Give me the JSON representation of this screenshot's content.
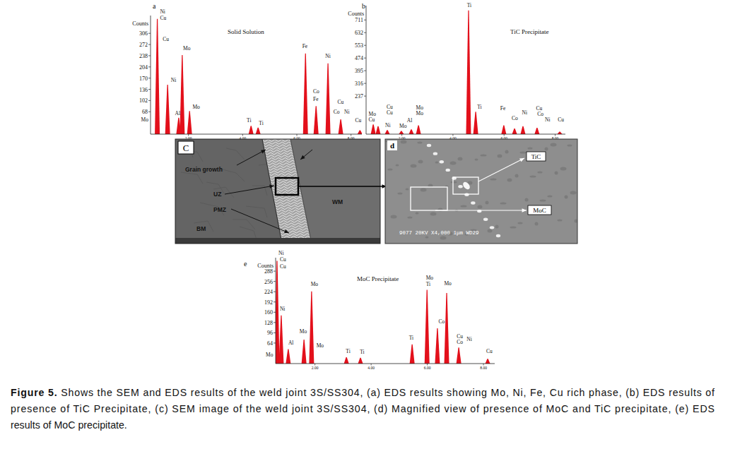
{
  "spectrum_labels": [
    "a",
    "b",
    "e"
  ],
  "chart_data": [
    {
      "type": "bar",
      "title": "Solid Solution",
      "ylabel": "Counts",
      "x": [
        0.85,
        1.23,
        1.64,
        1.77,
        2.04,
        4.31,
        4.57,
        6.32,
        6.71,
        7.15,
        7.62,
        8.33
      ],
      "values": [
        350,
        150,
        50,
        240,
        70,
        25,
        20,
        245,
        85,
        215,
        45,
        12
      ],
      "color": "#e3101b",
      "xlim": [
        0.6,
        8.4
      ],
      "xticks": [
        {
          "value": 2,
          "label": "2.00"
        },
        {
          "value": 4,
          "label": "4.00"
        },
        {
          "value": 6,
          "label": "6.00"
        },
        {
          "value": 8,
          "label": "8.00"
        }
      ],
      "ylim": [
        0,
        360
      ],
      "yticks": [
        68,
        102,
        136,
        170,
        204,
        238,
        272,
        306
      ],
      "annotations": [
        {
          "text": "Ni",
          "x": 0.95,
          "y": 366
        },
        {
          "text": "Cu",
          "x": 0.95,
          "y": 347
        },
        {
          "text": "Cu",
          "x": 1.05,
          "y": 282
        },
        {
          "text": "Ni",
          "x": 1.35,
          "y": 158
        },
        {
          "text": "Al",
          "x": 1.5,
          "y": 58
        },
        {
          "text": "Mo",
          "x": 1.8,
          "y": 255
        },
        {
          "text": "Mo",
          "x": 2.15,
          "y": 78
        },
        {
          "text": "Mo",
          "x": 0.25,
          "y": 38
        },
        {
          "text": "Ti",
          "x": 4.15,
          "y": 36
        },
        {
          "text": "Ti",
          "x": 4.6,
          "y": 28
        },
        {
          "text": "Fe",
          "x": 6.2,
          "y": 262
        },
        {
          "text": "Co",
          "x": 6.6,
          "y": 125
        },
        {
          "text": "Fe",
          "x": 6.6,
          "y": 100
        },
        {
          "text": "Ni",
          "x": 7.05,
          "y": 232
        },
        {
          "text": "Cu",
          "x": 7.5,
          "y": 92
        },
        {
          "text": "Co",
          "x": 7.35,
          "y": 62
        },
        {
          "text": "Ni",
          "x": 7.75,
          "y": 62
        },
        {
          "text": "Cu",
          "x": 8.15,
          "y": 36
        }
      ]
    },
    {
      "type": "bar",
      "title": "TiC Precipitate",
      "ylabel": "Counts",
      "x": [
        0.88,
        1.07,
        1.43,
        1.98,
        2.37,
        2.65,
        4.61,
        4.89,
        5.99,
        6.41,
        6.74,
        7.29,
        8.18
      ],
      "values": [
        60,
        50,
        25,
        20,
        30,
        55,
        770,
        140,
        55,
        35,
        50,
        40,
        15
      ],
      "color": "#e3101b",
      "xlim": [
        0.6,
        8.4
      ],
      "xticks": [
        {
          "value": 2,
          "label": "2.00"
        },
        {
          "value": 4,
          "label": "4.00"
        },
        {
          "value": 6,
          "label": "6.00"
        },
        {
          "value": 8,
          "label": "8.00"
        }
      ],
      "ylim": [
        0,
        800
      ],
      "yticks": [
        237,
        316,
        395,
        474,
        553,
        632,
        711
      ],
      "annotations": [
        {
          "text": "Ti",
          "x": 4.55,
          "y": 790
        },
        {
          "text": "Ti",
          "x": 4.95,
          "y": 160
        },
        {
          "text": "Fe",
          "x": 5.85,
          "y": 150
        },
        {
          "text": "Co",
          "x": 6.3,
          "y": 90
        },
        {
          "text": "Ni",
          "x": 6.7,
          "y": 125
        },
        {
          "text": "Cu",
          "x": 7.25,
          "y": 150
        },
        {
          "text": "Co",
          "x": 7.3,
          "y": 115
        },
        {
          "text": "Ni",
          "x": 7.6,
          "y": 80
        },
        {
          "text": "Cu",
          "x": 8.1,
          "y": 80
        },
        {
          "text": "Mo",
          "x": 0.7,
          "y": 115
        },
        {
          "text": "Cu",
          "x": 0.7,
          "y": 80
        },
        {
          "text": "Cu",
          "x": 1.4,
          "y": 160
        },
        {
          "text": "Cu",
          "x": 1.4,
          "y": 125
        },
        {
          "text": "Ni",
          "x": 1.35,
          "y": 45
        },
        {
          "text": "Mo",
          "x": 1.9,
          "y": 38
        },
        {
          "text": "Al",
          "x": 2.2,
          "y": 75
        },
        {
          "text": "Mo",
          "x": 2.55,
          "y": 155
        },
        {
          "text": "Mo",
          "x": 2.55,
          "y": 120
        }
      ]
    },
    {
      "type": "bar",
      "title": "MoC Precipitate",
      "ylabel": "Counts",
      "x": [
        0.65,
        0.8,
        1.05,
        1.61,
        1.88,
        3.12,
        3.62,
        5.46,
        5.99,
        6.36,
        6.69,
        7.12,
        8.15
      ],
      "values": [
        320,
        150,
        45,
        75,
        225,
        20,
        18,
        60,
        230,
        110,
        220,
        50,
        15
      ],
      "color": "#e3101b",
      "xlim": [
        0.6,
        8.4
      ],
      "xticks": [
        {
          "value": 2,
          "label": "2.00"
        },
        {
          "value": 4,
          "label": "4.00"
        },
        {
          "value": 6,
          "label": "6.00"
        },
        {
          "value": 8,
          "label": "8.00"
        }
      ],
      "ylim": [
        0,
        330
      ],
      "yticks": [
        64,
        96,
        128,
        160,
        192,
        224,
        256,
        288
      ],
      "annotations": [
        {
          "text": "Ni",
          "x": 0.7,
          "y": 338
        },
        {
          "text": "Cu",
          "x": 0.75,
          "y": 318
        },
        {
          "text": "Cu",
          "x": 0.75,
          "y": 298
        },
        {
          "text": "Ni",
          "x": 0.75,
          "y": 165
        },
        {
          "text": "Al",
          "x": 1.05,
          "y": 60
        },
        {
          "text": "Mo",
          "x": 1.45,
          "y": 95
        },
        {
          "text": "Mo",
          "x": 1.85,
          "y": 242
        },
        {
          "text": "Mo",
          "x": 2.05,
          "y": 50
        },
        {
          "text": "Mo",
          "x": 0.25,
          "y": 22
        },
        {
          "text": "Ti",
          "x": 3.1,
          "y": 32
        },
        {
          "text": "Ti",
          "x": 3.6,
          "y": 30
        },
        {
          "text": "Ti",
          "x": 5.35,
          "y": 75
        },
        {
          "text": "Mo",
          "x": 5.95,
          "y": 262
        },
        {
          "text": "Ti",
          "x": 5.95,
          "y": 243
        },
        {
          "text": "Co",
          "x": 6.4,
          "y": 125
        },
        {
          "text": "Mo",
          "x": 6.6,
          "y": 245
        },
        {
          "text": "Cu",
          "x": 7.05,
          "y": 80
        },
        {
          "text": "Co",
          "x": 7.05,
          "y": 62
        },
        {
          "text": "Ni",
          "x": 7.4,
          "y": 70
        },
        {
          "text": "Cu",
          "x": 8.1,
          "y": 32
        }
      ]
    }
  ],
  "images": {
    "c": {
      "letter": "C",
      "labels": [
        "Grain growth",
        "UZ",
        "PMZ",
        "WM",
        "BM"
      ]
    },
    "d": {
      "letter": "d",
      "labels": [
        "TiC",
        "MoC"
      ],
      "info": "9077  20KV  X4,000  1μm  WD29"
    }
  },
  "caption": {
    "label": "Figure 5.",
    "lines": [
      " Shows the SEM and EDS results of the weld joint 3S/SS304, (a) EDS results showing Mo, Ni, Fe, Cu rich phase, (b) EDS results of",
      "presence of TiC Precipitate, (c) SEM image of the weld joint 3S/SS304, (d) Magnified view of presence of MoC and TiC precipitate, (e) EDS",
      "results of MoC precipitate."
    ]
  }
}
